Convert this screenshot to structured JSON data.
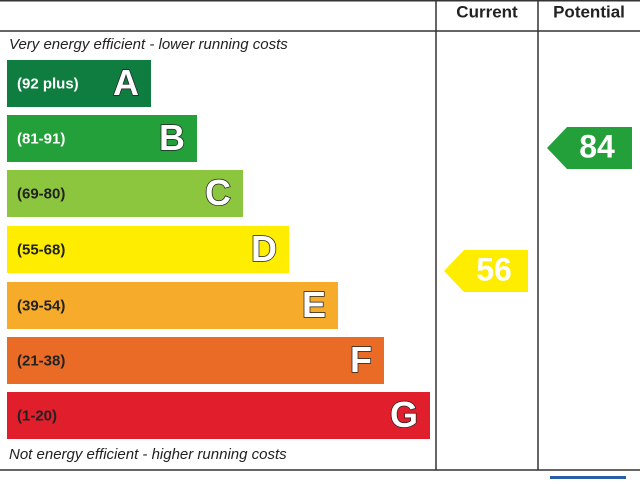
{
  "header": {
    "current": "Current",
    "potential": "Potential"
  },
  "top_note": "Very energy efficient - lower running costs",
  "bottom_note": "Not energy efficient - higher running costs",
  "bands": [
    {
      "range": "(92 plus)",
      "letter": "A",
      "color": "#0f7d3f",
      "text_color": "#ffffff"
    },
    {
      "range": "(81-91)",
      "letter": "B",
      "color": "#24a03b",
      "text_color": "#ffffff"
    },
    {
      "range": "(69-80)",
      "letter": "C",
      "color": "#8cc63f",
      "text_color": "#222222"
    },
    {
      "range": "(55-68)",
      "letter": "D",
      "color": "#ffed00",
      "text_color": "#222222"
    },
    {
      "range": "(39-54)",
      "letter": "E",
      "color": "#f6ab2a",
      "text_color": "#222222"
    },
    {
      "range": "(21-38)",
      "letter": "F",
      "color": "#ea6b26",
      "text_color": "#222222"
    },
    {
      "range": "(1-20)",
      "letter": "G",
      "color": "#e11e2b",
      "text_color": "#222222"
    }
  ],
  "current": {
    "value": 56,
    "color": "#ffed00"
  },
  "potential": {
    "value": 84,
    "color": "#24a03b"
  }
}
